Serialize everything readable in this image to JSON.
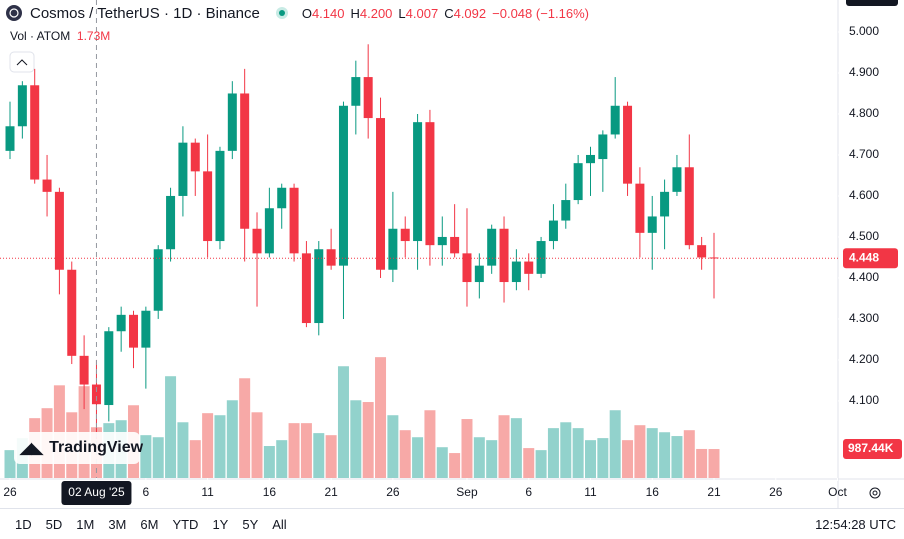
{
  "header": {
    "symbol": "Cosmos / TetherUS · 1D · Binance",
    "ohlc": [
      {
        "key": "O",
        "value": "4.140"
      },
      {
        "key": "H",
        "value": "4.200"
      },
      {
        "key": "L",
        "value": "4.007"
      },
      {
        "key": "C",
        "value": "4.092"
      }
    ],
    "change": "−0.048 (−1.16%)",
    "volume_title": "Vol · ATOM"
  },
  "chart_data": {
    "type": "candlestick",
    "open": [
      4.71,
      4.77,
      4.87,
      4.64,
      4.61,
      4.42,
      4.21,
      4.14,
      4.09,
      4.27,
      4.31,
      4.23,
      4.32,
      4.47,
      4.6,
      4.73,
      4.66,
      4.49,
      4.71,
      4.85,
      4.52,
      4.46,
      4.57,
      4.62,
      4.46,
      4.29,
      4.47,
      4.43,
      4.82,
      4.89,
      4.79,
      4.42,
      4.52,
      4.49,
      4.78,
      4.48,
      4.5,
      4.46,
      4.39,
      4.43,
      4.52,
      4.39,
      4.44,
      4.41,
      4.49,
      4.54,
      4.59,
      4.68,
      4.69,
      4.75,
      4.82,
      4.63,
      4.51,
      4.55,
      4.61,
      4.67,
      4.48,
      4.45
    ],
    "high": [
      4.83,
      4.88,
      4.91,
      4.7,
      4.62,
      4.44,
      4.26,
      4.2,
      4.28,
      4.33,
      4.32,
      4.33,
      4.48,
      4.62,
      4.77,
      4.74,
      4.75,
      4.72,
      4.88,
      4.91,
      4.56,
      4.62,
      4.63,
      4.63,
      4.49,
      4.49,
      4.52,
      4.83,
      4.93,
      4.97,
      4.84,
      4.61,
      4.55,
      4.8,
      4.81,
      4.55,
      4.58,
      4.57,
      4.46,
      4.53,
      4.55,
      4.47,
      4.46,
      4.5,
      4.58,
      4.63,
      4.7,
      4.72,
      4.76,
      4.89,
      4.83,
      4.67,
      4.6,
      4.64,
      4.7,
      4.75,
      4.5,
      4.51
    ],
    "low": [
      4.69,
      4.74,
      4.63,
      4.55,
      4.36,
      4.19,
      4.08,
      4.007,
      4.05,
      4.22,
      4.18,
      4.13,
      4.3,
      4.44,
      4.55,
      4.6,
      4.45,
      4.47,
      4.69,
      4.44,
      4.33,
      4.45,
      4.52,
      4.44,
      4.28,
      4.26,
      4.42,
      4.3,
      4.75,
      4.74,
      4.4,
      4.39,
      4.45,
      4.42,
      4.43,
      4.43,
      4.45,
      4.33,
      4.35,
      4.41,
      4.34,
      4.37,
      4.37,
      4.4,
      4.47,
      4.52,
      4.58,
      4.6,
      4.61,
      4.74,
      4.6,
      4.45,
      4.42,
      4.47,
      4.6,
      4.47,
      4.42,
      4.35
    ],
    "close": [
      4.77,
      4.87,
      4.64,
      4.61,
      4.42,
      4.21,
      4.14,
      4.092,
      4.27,
      4.31,
      4.23,
      4.32,
      4.47,
      4.6,
      4.73,
      4.66,
      4.49,
      4.71,
      4.85,
      4.52,
      4.46,
      4.57,
      4.62,
      4.46,
      4.29,
      4.47,
      4.43,
      4.82,
      4.89,
      4.79,
      4.42,
      4.52,
      4.49,
      4.78,
      4.48,
      4.5,
      4.46,
      4.39,
      4.43,
      4.52,
      4.39,
      4.44,
      4.41,
      4.49,
      4.54,
      4.59,
      4.68,
      4.7,
      4.75,
      4.82,
      4.63,
      4.51,
      4.55,
      4.61,
      4.67,
      4.48,
      4.45,
      4.448
    ],
    "volume": [
      950000,
      1360000,
      2040000,
      2380000,
      3160000,
      2240000,
      3130000,
      1730000,
      1870000,
      1970000,
      2480000,
      1460000,
      1390000,
      3470000,
      1900000,
      1290000,
      2210000,
      2140000,
      2650000,
      3400000,
      2240000,
      1090000,
      1290000,
      1870000,
      1870000,
      1530000,
      1460000,
      3810000,
      2650000,
      2590000,
      4120000,
      2140000,
      1630000,
      1390000,
      2310000,
      1050000,
      850000,
      2010000,
      1390000,
      1290000,
      2140000,
      2040000,
      1020000,
      950000,
      1700000,
      1900000,
      1700000,
      1290000,
      1360000,
      2310000,
      1290000,
      1800000,
      1700000,
      1560000,
      1430000,
      1630000,
      990000,
      987440
    ],
    "volume_labels": [
      null,
      null,
      null,
      null,
      null,
      null,
      null,
      "1.73M",
      null,
      null,
      null,
      null,
      null,
      null,
      null,
      null,
      null,
      null,
      null,
      null,
      null,
      null,
      null,
      null,
      null,
      null,
      null,
      null,
      null,
      null,
      null,
      null,
      null,
      null,
      null,
      null,
      null,
      null,
      null,
      null,
      null,
      null,
      null,
      null,
      null,
      null,
      null,
      null,
      null,
      null,
      null,
      null,
      null,
      null,
      null,
      null,
      null,
      "987.44K"
    ],
    "up_color": "#089981",
    "down_color": "#f23645",
    "volume_up_color": "#92d2cc",
    "volume_down_color": "#f7a9a7",
    "xlim": [
      -0.81,
      67.04
    ],
    "xticks": [
      {
        "value": 0,
        "label": "26"
      },
      {
        "value": 7,
        "label": "02 Aug '25"
      },
      {
        "value": 11,
        "label": "6"
      },
      {
        "value": 16,
        "label": "11"
      },
      {
        "value": 21,
        "label": "16"
      },
      {
        "value": 26,
        "label": "21"
      },
      {
        "value": 31,
        "label": "26"
      },
      {
        "value": 37,
        "label": "Sep"
      },
      {
        "value": 42,
        "label": "6"
      },
      {
        "value": 47,
        "label": "11"
      },
      {
        "value": 52,
        "label": "16"
      },
      {
        "value": 57,
        "label": "21"
      },
      {
        "value": 62,
        "label": "26"
      },
      {
        "value": 67,
        "label": "Oct"
      }
    ],
    "ylim": [
      3.912,
      5.078
    ],
    "yticks": [
      {
        "value": 4.1,
        "label": "4.100"
      },
      {
        "value": 4.2,
        "label": "4.200"
      },
      {
        "value": 4.3,
        "label": "4.300"
      },
      {
        "value": 4.4,
        "label": "4.400"
      },
      {
        "value": 4.5,
        "label": "4.500"
      },
      {
        "value": 4.6,
        "label": "4.600"
      },
      {
        "value": 4.7,
        "label": "4.700"
      },
      {
        "value": 4.8,
        "label": "4.800"
      },
      {
        "value": 4.9,
        "label": "4.900"
      },
      {
        "value": 5.0,
        "label": "5.000"
      }
    ],
    "volume_ylim": [
      0,
      4500000
    ]
  },
  "watermark": "TradingView",
  "toolbar": {
    "ranges": [
      "1D",
      "5D",
      "1M",
      "3M",
      "6M",
      "YTD",
      "1Y",
      "5Y",
      "All"
    ],
    "clock": "12:54:28 UTC"
  }
}
